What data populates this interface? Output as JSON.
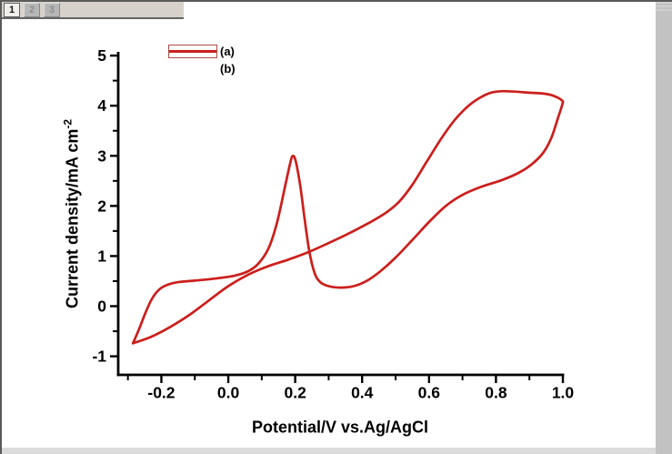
{
  "window": {
    "tabs": [
      {
        "label": "1",
        "active": true
      },
      {
        "label": "2",
        "active": false
      },
      {
        "label": "3",
        "active": false
      }
    ]
  },
  "legend": {
    "entries": [
      {
        "label": "(a)",
        "has_line": true
      },
      {
        "label": "(b)",
        "has_line": false
      }
    ]
  },
  "chart_data": {
    "type": "line",
    "title": "",
    "xlabel": "Potential/V vs.Ag/AgCl",
    "ylabel_main": "Current density/mA cm",
    "ylabel_sup": "-2",
    "xlim": [
      -0.329,
      1.0
    ],
    "ylim": [
      -1.37,
      5.056
    ],
    "grid": false,
    "legend_position": "top-left-inside",
    "x_major_ticks": {
      "values": [
        -0.2,
        0.0,
        0.2,
        0.4,
        0.6,
        0.8,
        1.0
      ],
      "labels": [
        "-0.2",
        "0.0",
        "0.2",
        "0.4",
        "0.6",
        "0.8",
        "1.0"
      ]
    },
    "x_minor_ticks": [
      -0.3,
      -0.1,
      0.1,
      0.3,
      0.5,
      0.7,
      0.9
    ],
    "y_major_ticks": {
      "values": [
        -1,
        0,
        1,
        2,
        3,
        4,
        5
      ],
      "labels": [
        "-1",
        "0",
        "1",
        "2",
        "3",
        "4",
        "5"
      ]
    },
    "y_minor_ticks": [
      -0.5,
      0.5,
      1.5,
      2.5,
      3.5,
      4.5
    ],
    "series": [
      {
        "name": "(a)",
        "color": "#cb1f1c",
        "points_forward": [
          [
            -0.285,
            -0.74
          ],
          [
            -0.268,
            -0.48
          ],
          [
            -0.248,
            -0.14
          ],
          [
            -0.228,
            0.15
          ],
          [
            -0.205,
            0.34
          ],
          [
            -0.18,
            0.43
          ],
          [
            -0.15,
            0.48
          ],
          [
            -0.1,
            0.51
          ],
          [
            -0.04,
            0.55
          ],
          [
            0.02,
            0.61
          ],
          [
            0.06,
            0.7
          ],
          [
            0.09,
            0.85
          ],
          [
            0.12,
            1.15
          ],
          [
            0.145,
            1.65
          ],
          [
            0.17,
            2.4
          ],
          [
            0.185,
            2.85
          ],
          [
            0.193,
            3.0
          ],
          [
            0.202,
            2.88
          ],
          [
            0.215,
            2.4
          ],
          [
            0.228,
            1.75
          ],
          [
            0.242,
            1.1
          ],
          [
            0.258,
            0.66
          ],
          [
            0.275,
            0.48
          ],
          [
            0.3,
            0.4
          ],
          [
            0.335,
            0.37
          ],
          [
            0.375,
            0.4
          ],
          [
            0.415,
            0.51
          ],
          [
            0.455,
            0.7
          ],
          [
            0.5,
            0.97
          ],
          [
            0.55,
            1.32
          ],
          [
            0.6,
            1.68
          ],
          [
            0.65,
            2.0
          ],
          [
            0.7,
            2.22
          ],
          [
            0.755,
            2.38
          ],
          [
            0.815,
            2.51
          ],
          [
            0.865,
            2.65
          ],
          [
            0.905,
            2.82
          ],
          [
            0.94,
            3.05
          ],
          [
            0.965,
            3.35
          ],
          [
            0.985,
            3.75
          ],
          [
            0.998,
            4.02
          ]
        ],
        "points_reverse": [
          [
            0.998,
            4.1
          ],
          [
            0.975,
            4.19
          ],
          [
            0.945,
            4.24
          ],
          [
            0.9,
            4.26
          ],
          [
            0.855,
            4.28
          ],
          [
            0.82,
            4.29
          ],
          [
            0.785,
            4.26
          ],
          [
            0.75,
            4.15
          ],
          [
            0.715,
            3.98
          ],
          [
            0.675,
            3.7
          ],
          [
            0.635,
            3.33
          ],
          [
            0.59,
            2.85
          ],
          [
            0.55,
            2.42
          ],
          [
            0.51,
            2.08
          ],
          [
            0.47,
            1.86
          ],
          [
            0.42,
            1.66
          ],
          [
            0.36,
            1.45
          ],
          [
            0.3,
            1.26
          ],
          [
            0.24,
            1.08
          ],
          [
            0.18,
            0.93
          ],
          [
            0.12,
            0.8
          ],
          [
            0.06,
            0.63
          ],
          [
            0.0,
            0.4
          ],
          [
            -0.055,
            0.13
          ],
          [
            -0.115,
            -0.17
          ],
          [
            -0.175,
            -0.42
          ],
          [
            -0.23,
            -0.61
          ],
          [
            -0.285,
            -0.74
          ]
        ]
      },
      {
        "name": "(b)",
        "color": null,
        "points_forward": [],
        "points_reverse": []
      }
    ]
  }
}
